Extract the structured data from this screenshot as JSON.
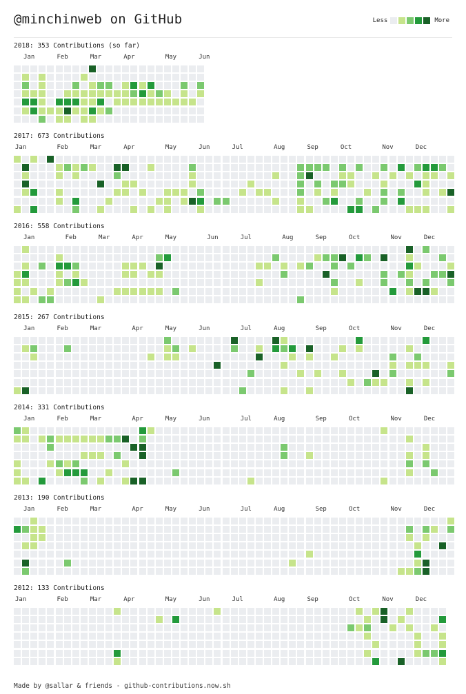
{
  "header": {
    "title": "@minchinweb on GitHub",
    "legend_less": "Less",
    "legend_more": "More"
  },
  "colors": {
    "level0": "#ebedf0",
    "level1": "#c6e48b",
    "level2": "#7bc96f",
    "level3": "#239a3b",
    "level4": "#196127"
  },
  "footer": "Made by @sallar & friends - github-contributions.now.sh",
  "chart_data": [
    {
      "type": "heatmap",
      "title": "2018: 353 Contributions (so far)",
      "year": 2018,
      "total": 353,
      "month_labels": [
        "Jan",
        "Feb",
        "Mar",
        "Apr",
        "May",
        "Jun"
      ],
      "month_weeks": [
        1,
        5,
        9,
        13,
        18,
        22
      ],
      "weeks": 23,
      "rows": [
        "00000000040000000000000",
        "01010000100000000000000",
        "02010002012201313000202",
        "01110011111111231210101",
        "03310333113011111111110",
        "01311141131200000000000",
        "00020110110000000000000"
      ]
    },
    {
      "type": "heatmap",
      "title": "2017: 673 Contributions",
      "year": 2017,
      "total": 673,
      "month_labels": [
        "Jan",
        "Feb",
        "Mar",
        "Apr",
        "May",
        "Jun",
        "Jul",
        "Aug",
        "Sep",
        "Oct",
        "Nov",
        "Dec"
      ],
      "month_weeks": [
        0,
        5,
        9,
        13,
        18,
        22,
        26,
        31,
        35,
        39,
        44,
        48
      ],
      "weeks": 53,
      "rows": [
        "10104000000000000000000000000000000000000000000000000",
        "04000121210044001000020000000000002222020200203023320",
        "01000101000020000000010000000001002400011001010101101",
        "04000000004001100000010000001000002020221000100031000",
        "01300100000011010011102000010110002010100010202001014",
        "00000103000100000110143022000001001002300200203000000",
        "10300002001000101010001000000000001100003302000111001"
      ]
    },
    {
      "type": "heatmap",
      "title": "2016: 558 Contributions",
      "year": 2016,
      "total": 558,
      "month_labels": [
        "Jan",
        "Feb",
        "Mar",
        "Apr",
        "May",
        "Jun",
        "Jul",
        "Aug",
        "Sep",
        "Oct",
        "Nov",
        "Dec"
      ],
      "month_weeks": [
        1,
        6,
        10,
        14,
        18,
        23,
        27,
        32,
        36,
        40,
        45,
        49
      ],
      "weeks": 53,
      "rows": [
        "01000000000000000000000000000000000000000000000402000",
        "00000100000000000230000000000002000012240320400100020",
        "01020332000001110400000000000110101200202000000310001",
        "13000101000001101100000000000000200004000000202100224",
        "11000123100000000000000000000100000000200100200202002",
        "10101000000011111102000000000000000000100000030144100",
        "11022000001000000000000000000000002000000000000000000"
      ]
    },
    {
      "type": "heatmap",
      "title": "2015: 267 Contributions",
      "year": 2015,
      "total": 267,
      "month_labels": [
        "Jan",
        "Feb",
        "Mar",
        "Apr",
        "May",
        "Jun",
        "Jul",
        "Aug",
        "Sep",
        "Oct",
        "Nov",
        "Dec"
      ],
      "month_weeks": [
        1,
        5,
        9,
        14,
        18,
        22,
        27,
        31,
        36,
        40,
        45,
        49
      ],
      "weeks": 53,
      "rows": [
        "00000000000000000020000000400004100000000300000003000",
        "01200020000000000012010000200103230400010100000100000",
        "00100000000000001011000000000400010100100000020020000",
        "00000000000000000000000040000000100000000000010111001",
        "00000000000000000000000000002000001010010004020000002",
        "00000000000000000000000000000000000000001021100101000",
        "14000000000000000000000000020000100100000000000400000"
      ]
    },
    {
      "type": "heatmap",
      "title": "2014: 331 Contributions",
      "year": 2014,
      "total": 331,
      "month_labels": [
        "Jan",
        "Feb",
        "Mar",
        "Apr",
        "May",
        "Jun",
        "Jul",
        "Aug",
        "Sep",
        "Oct",
        "Nov",
        "Dec"
      ],
      "month_weeks": [
        1,
        5,
        9,
        14,
        18,
        22,
        27,
        31,
        36,
        40,
        45,
        49
      ],
      "weeks": 53,
      "rows": [
        "21000000000000031000000000000000000000000000100000000",
        "11012111111224020000000000000000000000000000000100000",
        "00002000000000440000000000000000200000000000000001000",
        "00000000111020040000000000000000200100000000000101000",
        "10001212000001000000000000000000000000000000000202000",
        "10000133300100000002000000000000000000000000000100200",
        "11030000201001440000000000001000000000000000100000000"
      ]
    },
    {
      "type": "heatmap",
      "title": "2013: 190 Contributions",
      "year": 2013,
      "total": 190,
      "month_labels": [
        "Jan",
        "Feb",
        "Mar",
        "Apr",
        "May",
        "Jun",
        "Jul",
        "Aug",
        "Sep",
        "Oct",
        "Nov",
        "Dec"
      ],
      "month_weeks": [
        1,
        5,
        9,
        14,
        18,
        22,
        27,
        31,
        36,
        40,
        45,
        49
      ],
      "weeks": 53,
      "rows": [
        "00100000000000000000000000000000000000000000000000001",
        "32110000000000000000000000000000000000000000000202102",
        "00110000000000000000000000000000000000000000000101000",
        "01100000000000000000000000000000000000000000000010040",
        "00000000000000000000000000000000000100000000000030000",
        "04000020000000000000000000000000010000000000000014000",
        "02000000000000000000000000000000000000000000001124000"
      ]
    },
    {
      "type": "heatmap",
      "title": "2012: 133 Contributions",
      "year": 2012,
      "total": 133,
      "month_labels": [
        "Jan",
        "Feb",
        "Mar",
        "Apr",
        "May",
        "Jun",
        "Jul",
        "Aug",
        "Sep",
        "Oct",
        "Nov",
        "Dec"
      ],
      "month_weeks": [
        0,
        5,
        9,
        13,
        18,
        22,
        26,
        31,
        35,
        40,
        44,
        48
      ],
      "weeks": 52,
      "rows": [
        "0000000000001000000000001000000000000000010140010000",
        "0000000000000000010300000000000000000000001040100003",
        "0000000000000000000000000000000000000000212001010010",
        "0000000000000000000000000000000000000000001000001001",
        "0000000000000000000000000000000000000000000100001001",
        "0000000000003000000000000000000000000000001000001223",
        "0000000000001000000000000000000000000000000300400001"
      ]
    }
  ]
}
